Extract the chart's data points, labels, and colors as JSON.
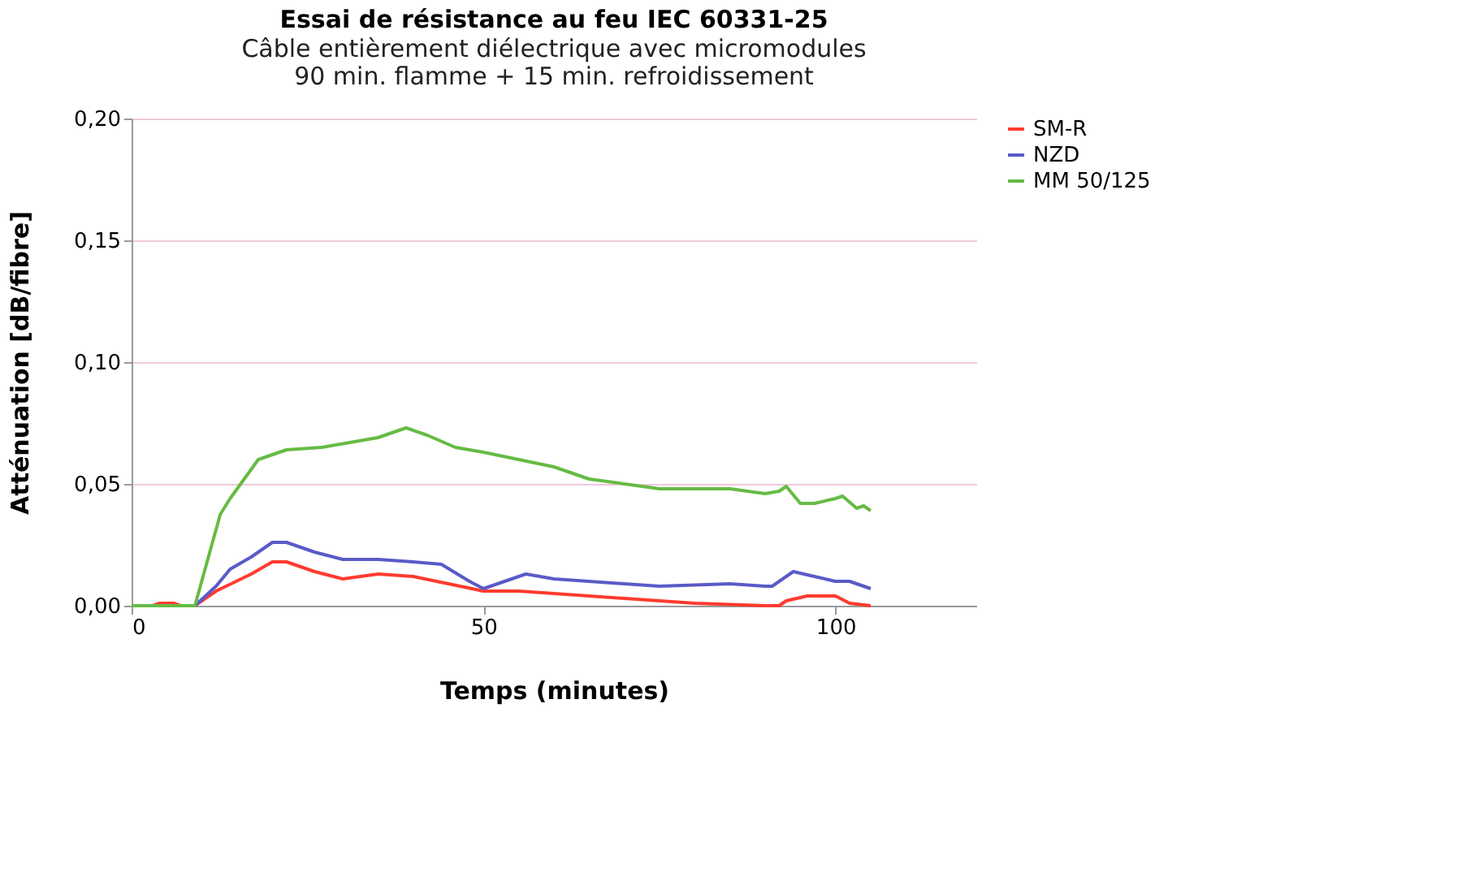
{
  "chart_data": {
    "type": "line",
    "title": "Essai de résistance au feu IEC 60331-25",
    "subtitle": "Câble entièrement diélectrique avec micromodules\n90 min. flamme + 15 min. refroidissement",
    "xlabel": "Temps (minutes)",
    "ylabel": "Atténuation [dB/fibre]",
    "xlim": [
      0,
      120
    ],
    "xticks": [
      0,
      50,
      100
    ],
    "ylim": [
      0,
      0.2
    ],
    "yticks": [
      {
        "value": 0,
        "label": "0,00"
      },
      {
        "value": 0.05,
        "label": "0,05"
      },
      {
        "value": 0.1,
        "label": "0,10"
      },
      {
        "value": 0.15,
        "label": "0,15"
      },
      {
        "value": 0.2,
        "label": "0,20"
      }
    ],
    "grid": "y",
    "legend": "right",
    "line_style": "solid",
    "marker": "none",
    "series": [
      {
        "name": "SM-R",
        "color": "#ff3b2f",
        "x": [
          0,
          3,
          4,
          6,
          7,
          9,
          12,
          17,
          20,
          22,
          26,
          30,
          35,
          40,
          45,
          50,
          55,
          60,
          70,
          80,
          90,
          92,
          93,
          96,
          100,
          102,
          105
        ],
        "values": [
          0,
          0,
          0.001,
          0.001,
          0,
          0,
          0.006,
          0.013,
          0.018,
          0.018,
          0.014,
          0.011,
          0.013,
          0.012,
          0.009,
          0.006,
          0.006,
          0.005,
          0.003,
          0.001,
          0,
          0,
          0.002,
          0.004,
          0.004,
          0.001,
          0
        ]
      },
      {
        "name": "NZD",
        "color": "#5a5ac8",
        "x": [
          0,
          9,
          12,
          14,
          17,
          20,
          22,
          26,
          30,
          35,
          40,
          44,
          48,
          50,
          53,
          56,
          60,
          70,
          75,
          85,
          90,
          91,
          94,
          97,
          100,
          102,
          105
        ],
        "values": [
          0,
          0,
          0.008,
          0.015,
          0.02,
          0.026,
          0.026,
          0.022,
          0.019,
          0.019,
          0.018,
          0.017,
          0.01,
          0.007,
          0.01,
          0.013,
          0.011,
          0.009,
          0.008,
          0.009,
          0.008,
          0.008,
          0.014,
          0.012,
          0.01,
          0.01,
          0.007
        ]
      },
      {
        "name": "MM 50/125",
        "color": "#66bb44",
        "x": [
          0,
          9,
          12.6,
          14,
          18,
          22,
          27,
          35,
          39,
          42,
          46,
          50,
          55,
          60,
          65,
          70,
          75,
          85,
          90,
          92,
          93,
          95,
          97,
          100,
          101,
          103,
          104,
          105
        ],
        "values": [
          0,
          0,
          0.0375,
          0.044,
          0.06,
          0.064,
          0.065,
          0.069,
          0.073,
          0.07,
          0.065,
          0.063,
          0.06,
          0.057,
          0.052,
          0.05,
          0.048,
          0.048,
          0.046,
          0.047,
          0.049,
          0.042,
          0.042,
          0.044,
          0.045,
          0.04,
          0.041,
          0.039
        ]
      }
    ]
  }
}
